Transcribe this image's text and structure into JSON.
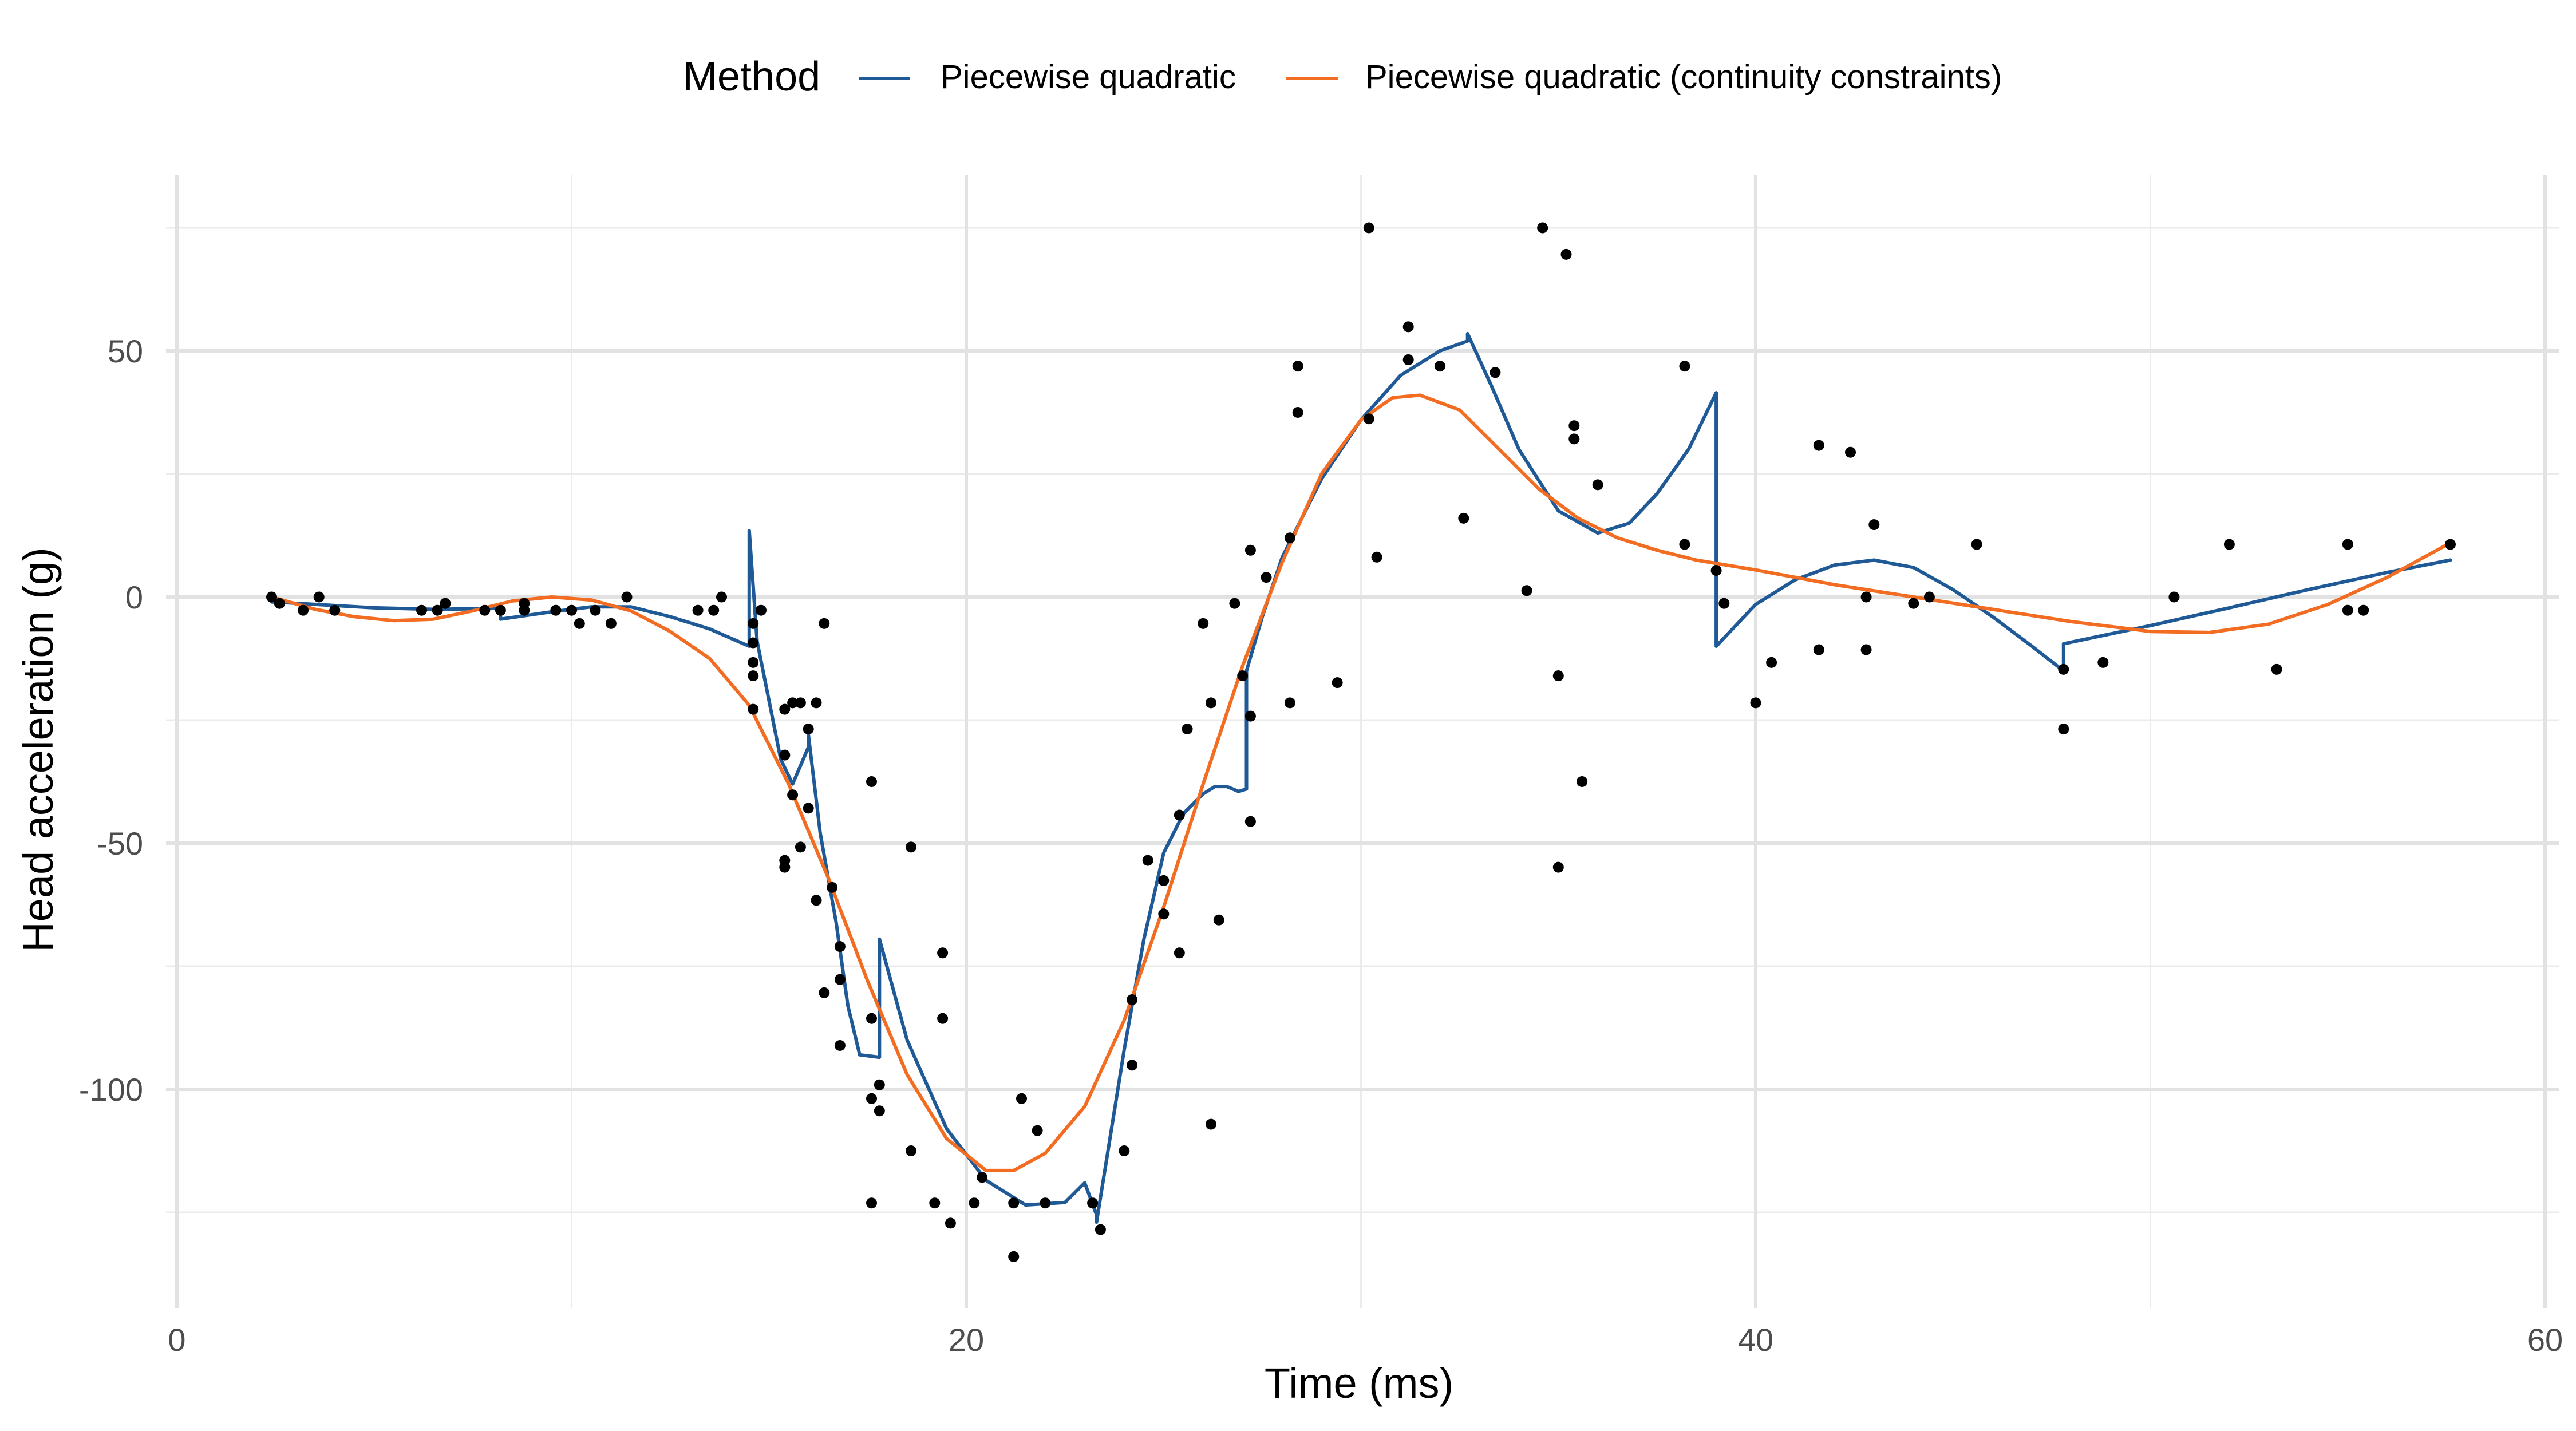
{
  "chart_data": {
    "type": "scatter",
    "title": "",
    "xlabel": "Time (ms)",
    "ylabel": "Head acceleration (g)",
    "xlim": [
      0,
      60
    ],
    "ylim": [
      -145,
      85
    ],
    "x_ticks": [
      0,
      20,
      40,
      60
    ],
    "x_tick_labels": [
      "0",
      "20",
      "40",
      "60"
    ],
    "y_ticks": [
      50,
      0,
      -50,
      -100
    ],
    "y_tick_labels": [
      "50",
      "0",
      "-50",
      "-100"
    ],
    "x_minor_grid": [
      10,
      30,
      50
    ],
    "y_minor_grid": [
      75,
      25,
      -25,
      -75,
      -125
    ],
    "grid": true,
    "legend": {
      "title": "Method",
      "position": "top",
      "entries": [
        {
          "label": "Piecewise quadratic",
          "color": "#1f5a96"
        },
        {
          "label": "Piecewise quadratic (continuity constraints)",
          "color": "#f26c21"
        }
      ]
    },
    "points": [
      [
        2.4,
        0.0
      ],
      [
        2.6,
        -1.3
      ],
      [
        3.2,
        -2.7
      ],
      [
        3.6,
        0.0
      ],
      [
        4.0,
        -2.7
      ],
      [
        6.2,
        -2.7
      ],
      [
        6.6,
        -2.7
      ],
      [
        6.8,
        -1.3
      ],
      [
        7.8,
        -2.7
      ],
      [
        8.2,
        -2.7
      ],
      [
        8.8,
        -2.7
      ],
      [
        8.8,
        -1.3
      ],
      [
        9.6,
        -2.7
      ],
      [
        10.0,
        -2.7
      ],
      [
        10.2,
        -5.4
      ],
      [
        10.6,
        -2.7
      ],
      [
        11.0,
        -5.4
      ],
      [
        11.4,
        0.0
      ],
      [
        13.2,
        -2.7
      ],
      [
        13.6,
        -2.7
      ],
      [
        13.8,
        0.0
      ],
      [
        14.6,
        -13.3
      ],
      [
        14.6,
        -5.4
      ],
      [
        14.6,
        -9.3
      ],
      [
        14.6,
        -16.0
      ],
      [
        14.6,
        -22.8
      ],
      [
        14.8,
        -2.7
      ],
      [
        15.4,
        -22.8
      ],
      [
        15.4,
        -32.1
      ],
      [
        15.4,
        -53.5
      ],
      [
        15.4,
        -54.9
      ],
      [
        15.6,
        -40.2
      ],
      [
        15.6,
        -21.5
      ],
      [
        15.8,
        -21.5
      ],
      [
        15.8,
        -50.8
      ],
      [
        16.0,
        -42.9
      ],
      [
        16.0,
        -26.8
      ],
      [
        16.2,
        -61.6
      ],
      [
        16.2,
        -21.5
      ],
      [
        16.4,
        -5.4
      ],
      [
        16.4,
        -80.4
      ],
      [
        16.6,
        -59.0
      ],
      [
        16.8,
        -71.0
      ],
      [
        16.8,
        -91.1
      ],
      [
        16.8,
        -77.7
      ],
      [
        17.6,
        -37.5
      ],
      [
        17.6,
        -85.6
      ],
      [
        17.6,
        -123.1
      ],
      [
        17.6,
        -101.9
      ],
      [
        17.8,
        -99.1
      ],
      [
        17.8,
        -104.4
      ],
      [
        18.6,
        -112.5
      ],
      [
        18.6,
        -50.8
      ],
      [
        19.2,
        -123.1
      ],
      [
        19.4,
        -85.6
      ],
      [
        19.4,
        -72.3
      ],
      [
        19.6,
        -127.2
      ],
      [
        20.2,
        -123.1
      ],
      [
        20.4,
        -117.9
      ],
      [
        21.2,
        -123.1
      ],
      [
        21.2,
        -134.0
      ],
      [
        21.4,
        -101.9
      ],
      [
        21.8,
        -108.4
      ],
      [
        22.0,
        -123.1
      ],
      [
        23.2,
        -123.1
      ],
      [
        23.4,
        -128.5
      ],
      [
        24.0,
        -112.5
      ],
      [
        24.2,
        -95.1
      ],
      [
        24.2,
        -81.8
      ],
      [
        24.6,
        -53.5
      ],
      [
        25.0,
        -64.4
      ],
      [
        25.0,
        -57.6
      ],
      [
        25.4,
        -72.3
      ],
      [
        25.4,
        -44.3
      ],
      [
        25.6,
        -26.8
      ],
      [
        26.0,
        -5.4
      ],
      [
        26.2,
        -107.1
      ],
      [
        26.2,
        -21.5
      ],
      [
        26.4,
        -65.6
      ],
      [
        26.8,
        -1.3
      ],
      [
        27.0,
        -16.0
      ],
      [
        27.2,
        -45.6
      ],
      [
        27.2,
        -24.2
      ],
      [
        27.2,
        9.5
      ],
      [
        27.6,
        4.0
      ],
      [
        28.2,
        12.0
      ],
      [
        28.2,
        -21.5
      ],
      [
        28.4,
        37.5
      ],
      [
        28.4,
        46.9
      ],
      [
        29.4,
        -17.4
      ],
      [
        30.2,
        36.2
      ],
      [
        30.2,
        75.0
      ],
      [
        30.4,
        8.1
      ],
      [
        31.2,
        54.9
      ],
      [
        31.2,
        48.2
      ],
      [
        32.0,
        46.9
      ],
      [
        32.6,
        16.0
      ],
      [
        33.4,
        45.6
      ],
      [
        34.2,
        1.3
      ],
      [
        34.6,
        75.0
      ],
      [
        35.0,
        -16.0
      ],
      [
        35.0,
        -54.9
      ],
      [
        35.2,
        69.6
      ],
      [
        35.4,
        34.8
      ],
      [
        35.4,
        32.1
      ],
      [
        35.6,
        -37.5
      ],
      [
        36.0,
        22.8
      ],
      [
        38.2,
        10.7
      ],
      [
        38.2,
        46.9
      ],
      [
        39.0,
        5.4
      ],
      [
        39.2,
        -1.3
      ],
      [
        40.0,
        -21.5
      ],
      [
        40.4,
        -13.3
      ],
      [
        41.6,
        30.8
      ],
      [
        41.6,
        -10.7
      ],
      [
        42.4,
        29.4
      ],
      [
        42.8,
        -10.7
      ],
      [
        42.8,
        0.0
      ],
      [
        43.0,
        14.7
      ],
      [
        44.0,
        -1.3
      ],
      [
        44.4,
        0.0
      ],
      [
        45.6,
        10.7
      ],
      [
        47.8,
        -26.8
      ],
      [
        47.8,
        -14.7
      ],
      [
        48.8,
        -13.3
      ],
      [
        50.6,
        0.0
      ],
      [
        52.0,
        10.7
      ],
      [
        53.2,
        -14.7
      ],
      [
        55.0,
        -2.7
      ],
      [
        55.0,
        10.7
      ],
      [
        55.4,
        -2.7
      ],
      [
        57.6,
        10.7
      ]
    ],
    "series": [
      {
        "name": "Piecewise quadratic",
        "color": "#1f5a96",
        "x": [
          2.4,
          3.5,
          5.0,
          6.5,
          7.5,
          8.2,
          8.2,
          9.5,
          10.5,
          11.5,
          12.5,
          13.5,
          14.5,
          14.5,
          14.5,
          14.7,
          15.0,
          15.3,
          15.6,
          16.0,
          16.0,
          16.0,
          16.3,
          16.7,
          17.0,
          17.3,
          17.8,
          17.8,
          17.8,
          18.5,
          19.5,
          20.5,
          21.5,
          22.5,
          23.0,
          23.3,
          23.3,
          23.3,
          24.0,
          24.5,
          25.0,
          25.5,
          26.0,
          26.3,
          26.6,
          26.9,
          27.1,
          27.1,
          27.1,
          27.5,
          28.0,
          29.0,
          30.0,
          31.0,
          32.0,
          32.7,
          32.7,
          32.7,
          33.3,
          34.0,
          35.0,
          36.0,
          36.8,
          37.5,
          38.3,
          39.0,
          39.0,
          39.0,
          40.0,
          41.0,
          42.0,
          43.0,
          44.0,
          45.0,
          46.0,
          47.0,
          47.8,
          47.8,
          47.8,
          50.0,
          52.0,
          54.0,
          56.0,
          57.6
        ],
        "y": [
          -1.0,
          -1.5,
          -2.2,
          -2.5,
          -2.4,
          -2.2,
          -4.5,
          -3.0,
          -2.0,
          -2.0,
          -4.0,
          -6.5,
          -10.0,
          -10.0,
          13.5,
          -9.0,
          -21.0,
          -33.0,
          -38.0,
          -30.5,
          -30.5,
          -28.0,
          -48.0,
          -66.0,
          -83.0,
          -93.0,
          -93.5,
          -93.5,
          -69.5,
          -90.0,
          -108.0,
          -118.5,
          -123.5,
          -123.0,
          -119.0,
          -125.5,
          -125.5,
          -127.0,
          -92.0,
          -69.5,
          -52.0,
          -44.0,
          -40.0,
          -38.5,
          -38.5,
          -39.5,
          -39.0,
          -39.0,
          -15.0,
          -4.0,
          8.0,
          24.0,
          36.0,
          45.0,
          50.0,
          52.0,
          52.0,
          53.5,
          43.0,
          30.0,
          17.5,
          13.0,
          15.0,
          21.0,
          30.0,
          41.5,
          41.5,
          -10.0,
          -1.5,
          3.5,
          6.5,
          7.5,
          6.0,
          1.5,
          -4.0,
          -10.0,
          -15.0,
          -15.0,
          -9.5,
          -5.8,
          -2.2,
          1.5,
          5.0,
          7.5
        ]
      },
      {
        "name": "Piecewise quadratic (continuity constraints)",
        "color": "#f26c21",
        "x": [
          2.4,
          3.5,
          4.5,
          5.5,
          6.5,
          7.5,
          8.5,
          9.5,
          10.5,
          11.5,
          12.5,
          13.5,
          14.5,
          15.5,
          16.5,
          17.5,
          18.5,
          19.5,
          20.5,
          21.2,
          22.0,
          23.0,
          24.0,
          25.0,
          26.0,
          27.0,
          28.0,
          29.0,
          30.0,
          30.8,
          31.5,
          32.5,
          33.5,
          34.5,
          35.5,
          36.5,
          37.5,
          38.5,
          40.0,
          42.0,
          44.0,
          46.0,
          48.0,
          50.0,
          51.5,
          53.0,
          54.5,
          56.0,
          57.6
        ],
        "y": [
          0.0,
          -2.5,
          -4.0,
          -4.8,
          -4.5,
          -2.8,
          -0.8,
          0.0,
          -0.6,
          -2.8,
          -7.0,
          -12.5,
          -22.0,
          -38.0,
          -57.0,
          -78.0,
          -97.0,
          -110.0,
          -116.5,
          -116.5,
          -113.0,
          -103.5,
          -86.0,
          -63.0,
          -38.0,
          -14.0,
          7.0,
          25.0,
          36.0,
          40.5,
          41.0,
          38.0,
          30.0,
          22.0,
          16.0,
          12.0,
          9.5,
          7.5,
          5.5,
          2.5,
          0.0,
          -2.5,
          -5.0,
          -7.0,
          -7.2,
          -5.5,
          -1.5,
          4.0,
          11.0
        ]
      }
    ]
  }
}
